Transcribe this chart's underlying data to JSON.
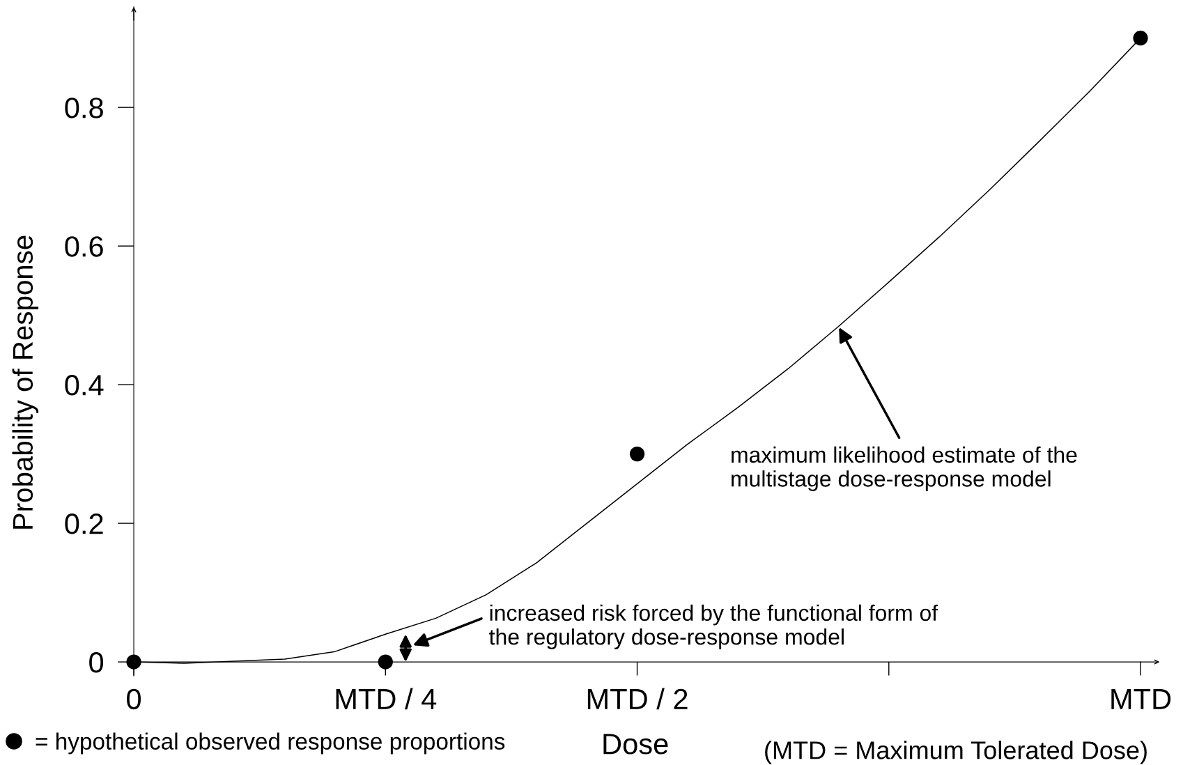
{
  "chart_data": {
    "type": "line",
    "xlabel": "Dose",
    "ylabel": "Probability of Response",
    "categories": [
      "0",
      null,
      null,
      null,
      null,
      "MTD / 4",
      null,
      null,
      null,
      null,
      "MTD / 2",
      null,
      null,
      null,
      null,
      null,
      null,
      null,
      null,
      null,
      "MTD"
    ],
    "ylim": [
      -0.02,
      0.945
    ],
    "yticks": [
      0,
      0.2,
      0.4,
      0.6,
      0.8
    ],
    "series": [
      {
        "color": "#000000",
        "line_style": "solid",
        "values": [
          0,
          -0.002,
          0.001,
          0.004,
          0.015,
          0.04,
          0.063,
          0.097,
          0.143,
          0.2,
          0.257,
          0.314,
          0.367,
          0.423,
          0.484,
          0.548,
          0.613,
          0.681,
          0.752,
          0.824,
          0.9
        ]
      },
      {
        "type": "scatter",
        "name": "= hypothetical observed response proportions",
        "color": "#000000",
        "marker": "circle",
        "values": [
          0,
          null,
          null,
          null,
          null,
          0,
          null,
          null,
          null,
          null,
          0.3,
          null,
          null,
          null,
          null,
          null,
          null,
          null,
          null,
          null,
          0.9
        ]
      }
    ],
    "legend": "bottom left",
    "annotations": [
      "maximum likelihood estimate of the\nmultistage dose-response model",
      "increased risk forced by the functional form of\nthe regulatory dose-response model",
      "(MTD = Maximum Tolerated Dose)"
    ]
  }
}
